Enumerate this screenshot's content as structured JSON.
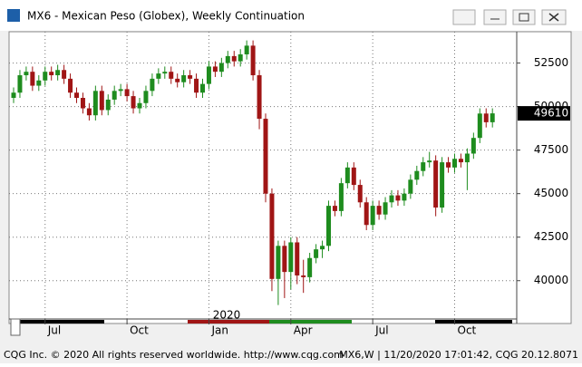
{
  "window_title": "MX6 - Mexican Peso (Globex), Weekly Continuation",
  "footer": {
    "left": "CQG Inc. © 2020 All rights reserved worldwide. http://www.cqg.com",
    "right": "MX6,W | 11/20/2020 17:01:42, CQG 20.12.8071"
  },
  "chart_data": {
    "type": "candlestick",
    "year_label": "2020",
    "up_color": "#1e8c1e",
    "down_color": "#a01515",
    "grid": true,
    "ylim": [
      37800,
      54300
    ],
    "yticks": [
      40000,
      42500,
      45000,
      47500,
      50000,
      52500
    ],
    "categories": [
      null,
      null,
      null,
      null,
      null,
      "Jul",
      null,
      null,
      null,
      null,
      null,
      null,
      null,
      null,
      null,
      null,
      null,
      null,
      "Oct",
      null,
      null,
      null,
      null,
      null,
      null,
      null,
      null,
      null,
      null,
      null,
      null,
      "Jan",
      null,
      null,
      null,
      null,
      null,
      null,
      null,
      null,
      null,
      null,
      null,
      null,
      "Apr",
      null,
      null,
      null,
      null,
      null,
      null,
      null,
      null,
      null,
      null,
      null,
      null,
      "Jul",
      null,
      null,
      null,
      null,
      null,
      null,
      null,
      null,
      null,
      null,
      null,
      null,
      "Oct",
      null,
      null,
      null,
      null,
      null,
      null
    ],
    "open": [
      50500,
      50800,
      51800,
      52000,
      51200,
      51500,
      52000,
      51800,
      52100,
      51600,
      50800,
      50500,
      49900,
      49500,
      50900,
      49800,
      50400,
      50900,
      51000,
      50600,
      49900,
      50200,
      50900,
      51600,
      51900,
      52000,
      51600,
      51400,
      51800,
      51600,
      50800,
      51300,
      52300,
      52000,
      52500,
      52900,
      52600,
      53000,
      53500,
      51800,
      49300,
      45000,
      40100,
      42000,
      40500,
      42200,
      40300,
      40200,
      41300,
      41800,
      42000,
      44300,
      44000,
      45600,
      46500,
      45500,
      44500,
      43200,
      44300,
      43800,
      44500,
      44900,
      44600,
      45000,
      45800,
      46300,
      46800,
      46900,
      44200,
      46800,
      46500,
      47000,
      46800,
      47300,
      48200,
      49600,
      49100
    ],
    "high": [
      51100,
      52100,
      52300,
      52300,
      51800,
      52300,
      52300,
      52400,
      52400,
      51900,
      51100,
      50800,
      50200,
      51200,
      51200,
      50700,
      51200,
      51300,
      51300,
      50900,
      50500,
      51200,
      51900,
      52200,
      52300,
      52300,
      51900,
      52100,
      52100,
      51900,
      51600,
      52600,
      52600,
      52800,
      53200,
      53200,
      53300,
      53800,
      53800,
      52100,
      49600,
      45300,
      42300,
      42300,
      42500,
      42500,
      41200,
      41600,
      42100,
      42300,
      44600,
      44600,
      45900,
      46800,
      46800,
      45800,
      44800,
      44600,
      44600,
      44800,
      45200,
      45200,
      45300,
      46100,
      46600,
      47100,
      47400,
      47200,
      47100,
      47100,
      47300,
      47300,
      47600,
      48500,
      49900,
      49900,
      49900
    ],
    "low": [
      50200,
      50500,
      51500,
      50900,
      50900,
      51200,
      51500,
      51500,
      51300,
      50500,
      50200,
      49600,
      49200,
      49200,
      49500,
      49500,
      50100,
      50600,
      50300,
      49600,
      49600,
      49900,
      50600,
      51300,
      51600,
      51300,
      51100,
      51100,
      51300,
      50500,
      50500,
      51000,
      51700,
      51700,
      52200,
      52300,
      52300,
      52700,
      51500,
      48700,
      44500,
      39400,
      38600,
      39000,
      39500,
      39800,
      39300,
      39900,
      41000,
      41300,
      41700,
      43700,
      43700,
      45300,
      45200,
      44200,
      42900,
      42900,
      43500,
      43500,
      44200,
      44300,
      44300,
      44700,
      45500,
      46000,
      46500,
      43700,
      43900,
      46200,
      46200,
      46500,
      45200,
      47000,
      47900,
      48800,
      48800
    ],
    "close": [
      50800,
      51800,
      52000,
      51200,
      51500,
      52000,
      51800,
      52100,
      51600,
      50800,
      50500,
      49900,
      49500,
      50900,
      49800,
      50400,
      50900,
      51000,
      50600,
      49900,
      50200,
      50900,
      51600,
      51900,
      52000,
      51600,
      51400,
      51800,
      51600,
      50800,
      51300,
      52300,
      52000,
      52500,
      52900,
      52600,
      53000,
      53500,
      51800,
      49300,
      45000,
      40100,
      42000,
      40500,
      42200,
      40300,
      40200,
      41300,
      41800,
      42000,
      44300,
      44000,
      45600,
      46500,
      45500,
      44500,
      43200,
      44300,
      43800,
      44500,
      44900,
      44600,
      45000,
      45800,
      46300,
      46800,
      46900,
      44200,
      46800,
      46500,
      47000,
      46800,
      47300,
      48200,
      49600,
      49100,
      49610
    ]
  }
}
